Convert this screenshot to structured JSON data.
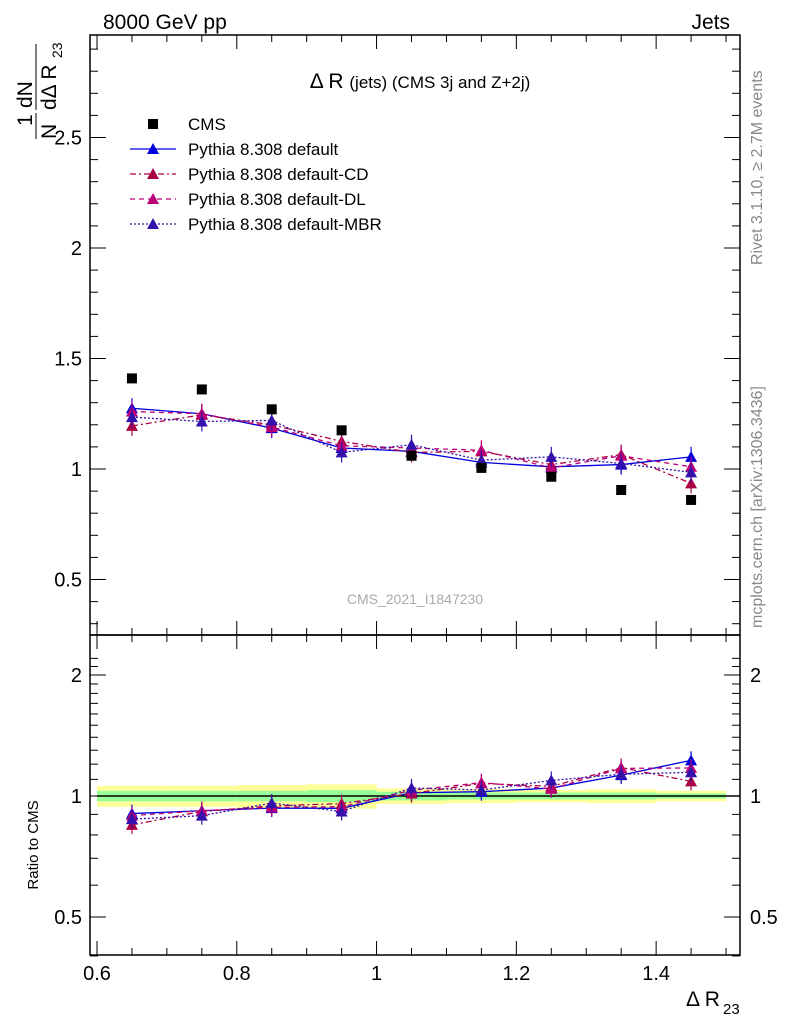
{
  "header": {
    "left": "8000 GeV pp",
    "right": "Jets"
  },
  "side": {
    "rivet": "Rivet 3.1.10, ≥ 2.7M events",
    "mcplots": "mcplots.cern.ch [arXiv:1306.3436]"
  },
  "watermark": "CMS_2021_I1847230",
  "chart_data": {
    "type": "scatter",
    "title": "Δ R (jets) (CMS 3j and Z+2j)",
    "xlabel": "Δ R23",
    "ylabel": "1/N dN/dΔ R23",
    "ratio_ylabel": "Ratio to CMS",
    "xlim": [
      0.59,
      1.52
    ],
    "ylim_main": [
      0.27,
      2.98
    ],
    "ylim_ratio": [
      0.3,
      2.3
    ],
    "x_ticks": [
      "0.6",
      "0.8",
      "1",
      "1.2",
      "1.4"
    ],
    "y_ticks_main": [
      "0.5",
      "1",
      "1.5",
      "2",
      "2.5"
    ],
    "y_ticks_ratio": [
      "0.5",
      "1",
      "2"
    ],
    "legend_position": "top-left",
    "x": [
      0.65,
      0.75,
      0.85,
      0.95,
      1.05,
      1.15,
      1.25,
      1.35,
      1.45
    ],
    "data": {
      "name": "CMS",
      "color": "#000000",
      "values": [
        1.41,
        1.36,
        1.27,
        1.175,
        1.06,
        1.005,
        0.965,
        0.905,
        0.86
      ]
    },
    "series": [
      {
        "name": "Pythia 8.308 default",
        "color": "#0000dd",
        "dash": "solid",
        "values": [
          1.275,
          1.25,
          1.185,
          1.095,
          1.08,
          1.03,
          1.01,
          1.02,
          1.055
        ]
      },
      {
        "name": "Pythia 8.308 default-CD",
        "color": "#aa0044",
        "dash": "dashdot",
        "values": [
          1.195,
          1.245,
          1.2,
          1.125,
          1.075,
          1.08,
          1.02,
          1.065,
          0.935
        ]
      },
      {
        "name": "Pythia 8.308 default-DL",
        "color": "#bb0077",
        "dash": "dashed",
        "values": [
          1.26,
          1.25,
          1.19,
          1.105,
          1.095,
          1.085,
          1.005,
          1.06,
          1.01
        ]
      },
      {
        "name": "Pythia 8.308 default-MBR",
        "color": "#3311aa",
        "dash": "dotted",
        "values": [
          1.235,
          1.215,
          1.22,
          1.075,
          1.11,
          1.04,
          1.055,
          1.025,
          0.985
        ]
      }
    ],
    "ratio_band": {
      "green_halfwidth": [
        0.03,
        0.03,
        0.03,
        0.035,
        0.025,
        0.02,
        0.02,
        0.02,
        0.015
      ],
      "yellow_halfwidth": [
        0.06,
        0.06,
        0.065,
        0.07,
        0.045,
        0.04,
        0.035,
        0.04,
        0.03
      ]
    }
  }
}
